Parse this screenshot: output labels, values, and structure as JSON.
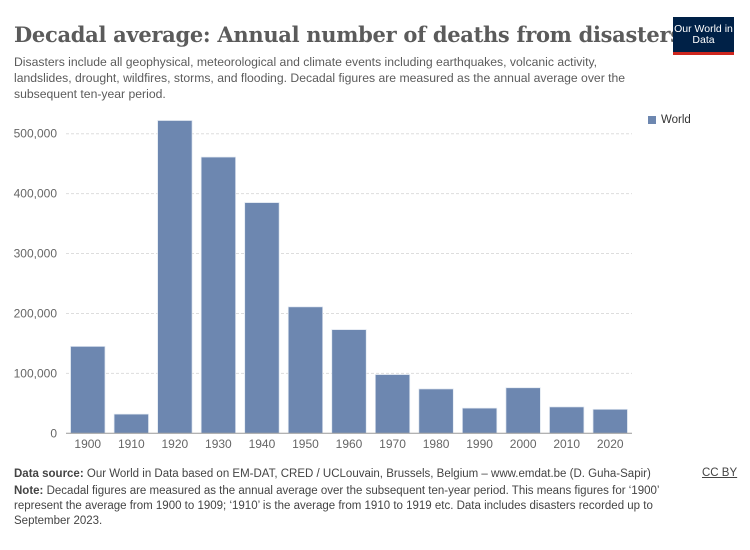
{
  "title": "Decadal average: Annual number of deaths from disasters",
  "subtitle": "Disasters include all geophysical, meteorological and climate events including earthquakes, volcanic activity, landslides, drought, wildfires, storms, and flooding. Decadal figures are measured as the annual average over the subsequent ten-year period.",
  "logo": "Our World in Data",
  "footer": {
    "source_label": "Data source:",
    "source": "Our World in Data based on EM-DAT, CRED / UCLouvain, Brussels, Belgium – www.emdat.be (D. Guha-Sapir)",
    "note_label": "Note:",
    "note": "Decadal figures are measured as the annual average over the subsequent ten-year period. This means figures for ‘1900’ represent the average from 1900 to 1909; ‘1910’ is the average from 1910 to 1919 etc. Data includes disasters recorded up to September 2023.",
    "license": "CC BY"
  },
  "chart_data": {
    "type": "bar",
    "title": "Decadal average: Annual number of deaths from disasters",
    "categories": [
      "1900",
      "1910",
      "1920",
      "1930",
      "1940",
      "1950",
      "1960",
      "1970",
      "1980",
      "1990",
      "2000",
      "2010",
      "2020"
    ],
    "series": [
      {
        "name": "World",
        "color": "#6d87b0",
        "values": [
          145000,
          32000,
          522000,
          461000,
          385000,
          211000,
          173000,
          98000,
          74000,
          42000,
          76000,
          44000,
          40000
        ]
      }
    ],
    "ylim": [
      0,
      500000
    ],
    "yticks": [
      0,
      100000,
      200000,
      300000,
      400000,
      500000
    ],
    "ytick_labels": [
      "0",
      "100,000",
      "200,000",
      "300,000",
      "400,000",
      "500,000"
    ],
    "grid": "horizontal dashed",
    "legend": "top-right"
  }
}
